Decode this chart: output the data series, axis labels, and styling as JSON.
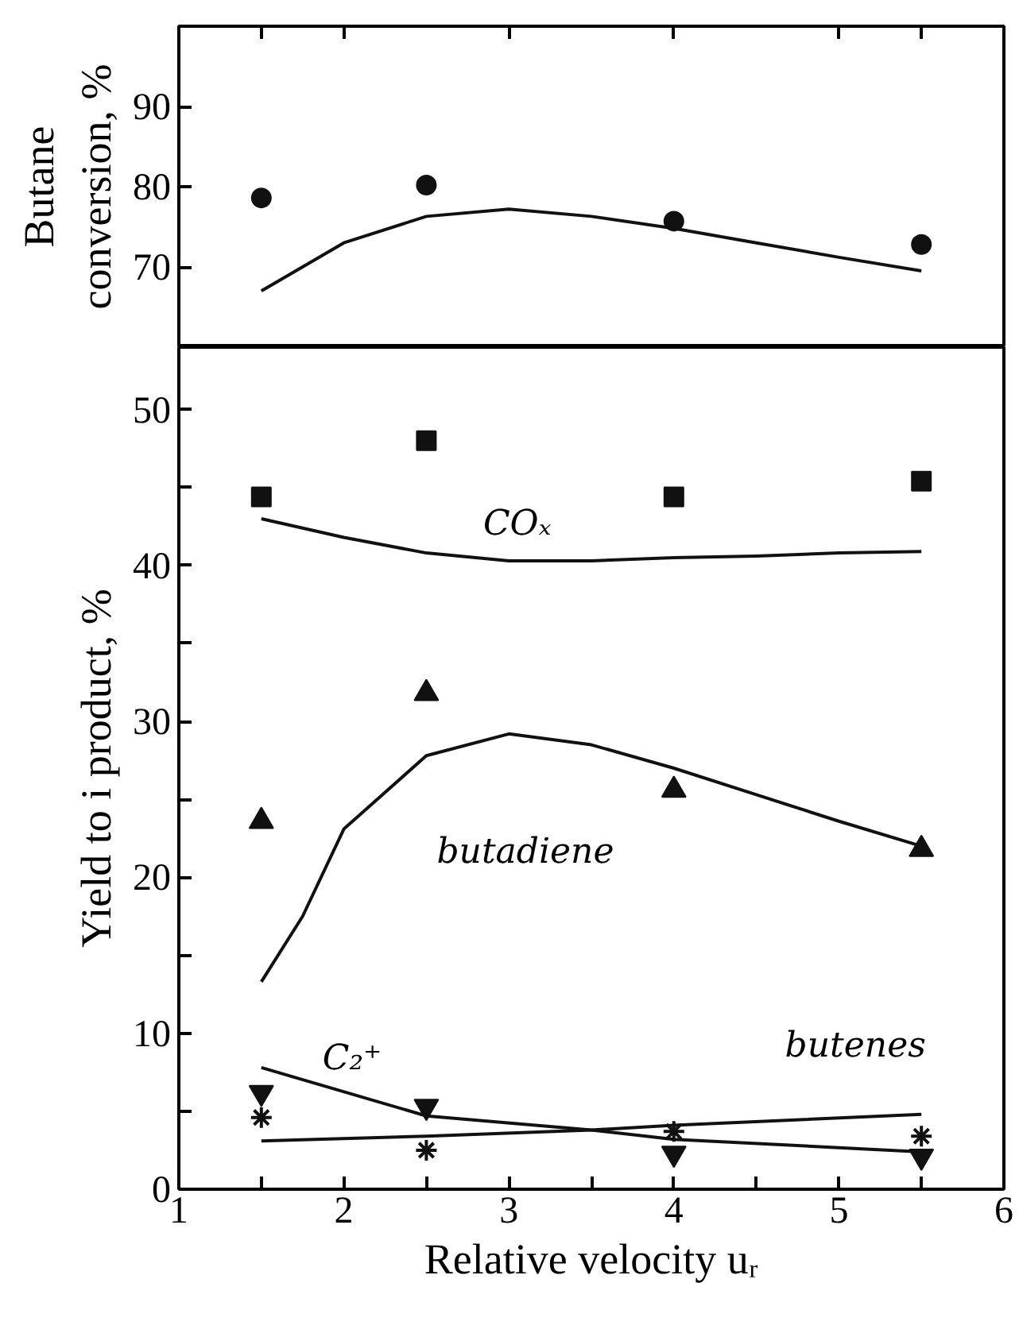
{
  "chart_data": [
    {
      "type": "scatter",
      "ylabel": "Butane\nconversion, %",
      "xlim": [
        1,
        6
      ],
      "ylim": [
        60,
        100
      ],
      "xticks": [
        {
          "value": 1.5,
          "label": null
        },
        {
          "value": 2,
          "label": null
        },
        {
          "value": 3,
          "label": null
        },
        {
          "value": 4,
          "label": null
        },
        {
          "value": 5,
          "label": null
        },
        {
          "value": 5.5,
          "label": null
        }
      ],
      "yticks": [
        70,
        80,
        90
      ],
      "tick_labels": "y",
      "grid": false,
      "series": [
        {
          "marker": "circle",
          "color": "#111111",
          "x": [
            1.5,
            2.5,
            4,
            5.5
          ],
          "values": [
            78.6,
            80.2,
            75.7,
            72.8
          ]
        },
        {
          "type": "line",
          "line_style": "solid",
          "color": "#111111",
          "x": [
            1.5,
            2,
            2.5,
            3,
            3.5,
            4,
            4.5,
            5,
            5.5
          ],
          "values": [
            67,
            73,
            76.3,
            77.2,
            76.3,
            74.8,
            73,
            71.2,
            69.5
          ]
        }
      ]
    },
    {
      "type": "scatter",
      "xlabel": "Relative velocity uᵣ",
      "ylabel": "Yield to i product, %",
      "xlim": [
        1,
        6
      ],
      "ylim": [
        0,
        54
      ],
      "xticks": [
        1,
        {
          "value": 1.5,
          "label": null
        },
        2,
        {
          "value": 2.5,
          "label": null
        },
        3,
        {
          "value": 3.5,
          "label": null
        },
        4,
        {
          "value": 4.5,
          "label": null
        },
        5,
        {
          "value": 5.5,
          "label": null
        },
        6
      ],
      "yticks": [
        0,
        {
          "value": 5,
          "label": null
        },
        10,
        {
          "value": 15,
          "label": null
        },
        20,
        {
          "value": 25,
          "label": null
        },
        30,
        {
          "value": 35,
          "label": null
        },
        40,
        {
          "value": 45,
          "label": null
        },
        50
      ],
      "grid": false,
      "annotations": [
        "COₓ",
        "butadiene",
        "C₂⁺",
        "butenes"
      ],
      "series": [
        {
          "marker": "square",
          "color": "#111111",
          "x": [
            1.5,
            2.5,
            4,
            5.5
          ],
          "values": [
            44.4,
            48.0,
            44.4,
            45.4
          ]
        },
        {
          "type": "line",
          "line_style": "solid",
          "color": "#111111",
          "x": [
            1.5,
            2,
            2.5,
            3,
            3.5,
            4,
            4.5,
            5,
            5.5
          ],
          "values": [
            43.0,
            41.8,
            40.8,
            40.3,
            40.3,
            40.5,
            40.6,
            40.8,
            40.9
          ]
        },
        {
          "marker": "triangle",
          "color": "#111111",
          "x": [
            1.5,
            2.5,
            4,
            5.5
          ],
          "values": [
            23.6,
            31.8,
            25.6,
            21.8
          ]
        },
        {
          "type": "line",
          "line_style": "solid",
          "color": "#111111",
          "x": [
            1.5,
            1.75,
            2,
            2.5,
            3,
            3.5,
            4,
            4.5,
            5,
            5.5
          ],
          "values": [
            13.3,
            17.5,
            23.1,
            27.8,
            29.2,
            28.5,
            27.0,
            25.3,
            23.6,
            22.0
          ]
        },
        {
          "marker": "triangle",
          "color": "#111111",
          "x": [
            1.5,
            2.5,
            4,
            5.5
          ],
          "values": [
            6.2,
            5.3,
            2.3,
            2.1
          ]
        },
        {
          "type": "line",
          "line_style": "solid",
          "color": "#111111",
          "x": [
            1.5,
            2.5,
            3.5,
            4,
            5.5
          ],
          "values": [
            7.8,
            4.7,
            3.8,
            3.2,
            2.4
          ]
        },
        {
          "marker": "cross",
          "color": "#111111",
          "x": [
            1.5,
            2.5,
            4,
            5.5
          ],
          "values": [
            4.6,
            2.5,
            3.7,
            3.4
          ]
        },
        {
          "type": "line",
          "line_style": "solid",
          "color": "#111111",
          "x": [
            1.5,
            2.5,
            3.5,
            4,
            5.5
          ],
          "values": [
            3.1,
            3.4,
            3.8,
            4.1,
            4.8
          ]
        }
      ]
    }
  ]
}
